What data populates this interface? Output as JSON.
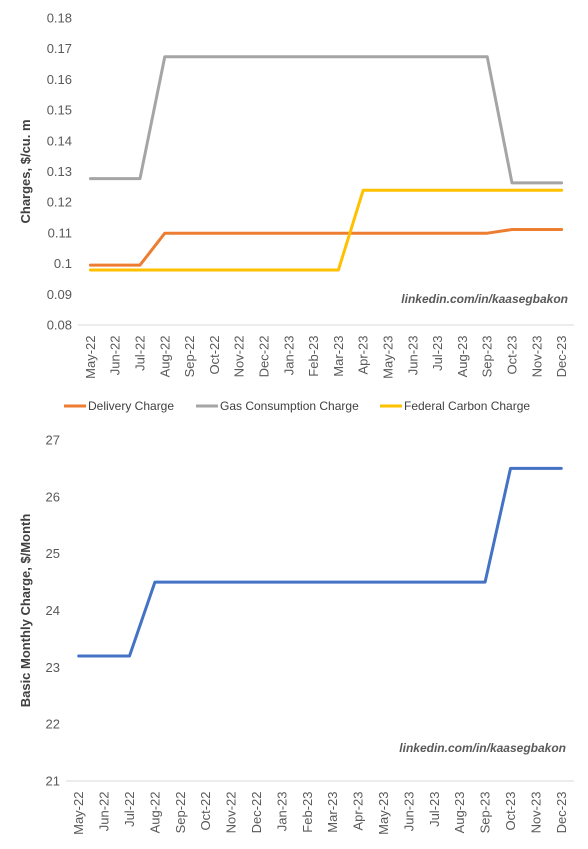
{
  "chart_data": [
    {
      "type": "line",
      "ylabel": "Charges, $/cu. m",
      "ylim": [
        0.08,
        0.18
      ],
      "yticks": [
        "0.08",
        "0.09",
        "0.1",
        "0.11",
        "0.12",
        "0.13",
        "0.14",
        "0.15",
        "0.16",
        "0.17",
        "0.18"
      ],
      "categories": [
        "May-22",
        "Jun-22",
        "Jul-22",
        "Aug-22",
        "Sep-22",
        "Oct-22",
        "Nov-22",
        "Dec-22",
        "Jan-23",
        "Feb-23",
        "Mar-23",
        "Apr-23",
        "May-23",
        "Jun-23",
        "Jul-23",
        "Aug-23",
        "Sep-23",
        "Oct-23",
        "Nov-23",
        "Dec-23"
      ],
      "grid": false,
      "legend": "bottom",
      "watermark": "linkedin.com/in/kaasegbakon",
      "series": [
        {
          "name": "Delivery Charge",
          "color": "#ED7D31",
          "values": [
            0.0995,
            0.0995,
            0.0995,
            0.1099,
            0.1099,
            0.1099,
            0.1099,
            0.1099,
            0.1099,
            0.1099,
            0.1099,
            0.1099,
            0.1099,
            0.1099,
            0.1099,
            0.1099,
            0.1099,
            0.1111,
            0.1111,
            0.1111
          ]
        },
        {
          "name": "Gas Consumption Charge",
          "color": "#A5A5A5",
          "values": [
            0.1277,
            0.1277,
            0.1277,
            0.1674,
            0.1674,
            0.1674,
            0.1674,
            0.1674,
            0.1674,
            0.1674,
            0.1674,
            0.1674,
            0.1674,
            0.1674,
            0.1674,
            0.1674,
            0.1674,
            0.1263,
            0.1263,
            0.1263
          ]
        },
        {
          "name": "Federal Carbon Charge",
          "color": "#FFC000",
          "values": [
            0.0979,
            0.0979,
            0.0979,
            0.0979,
            0.0979,
            0.0979,
            0.0979,
            0.0979,
            0.0979,
            0.0979,
            0.0979,
            0.1239,
            0.1239,
            0.1239,
            0.1239,
            0.1239,
            0.1239,
            0.1239,
            0.1239,
            0.1239
          ]
        }
      ]
    },
    {
      "type": "line",
      "ylabel": "Basic Monthly Charge, $/Month",
      "ylim": [
        21,
        27
      ],
      "yticks": [
        "21",
        "22",
        "23",
        "24",
        "25",
        "26",
        "27"
      ],
      "categories": [
        "May-22",
        "Jun-22",
        "Jul-22",
        "Aug-22",
        "Sep-22",
        "Oct-22",
        "Nov-22",
        "Dec-22",
        "Jan-23",
        "Feb-23",
        "Mar-23",
        "Apr-23",
        "May-23",
        "Jun-23",
        "Jul-23",
        "Aug-23",
        "Sep-23",
        "Oct-23",
        "Nov-23",
        "Dec-23"
      ],
      "grid": false,
      "legend": "none",
      "watermark": "linkedin.com/in/kaasegbakon",
      "series": [
        {
          "color": "#4472C4",
          "values": [
            23.2,
            23.2,
            23.2,
            24.5,
            24.5,
            24.5,
            24.5,
            24.5,
            24.5,
            24.5,
            24.5,
            24.5,
            24.5,
            24.5,
            24.5,
            24.5,
            24.5,
            26.5,
            26.5,
            26.5
          ]
        }
      ]
    }
  ]
}
